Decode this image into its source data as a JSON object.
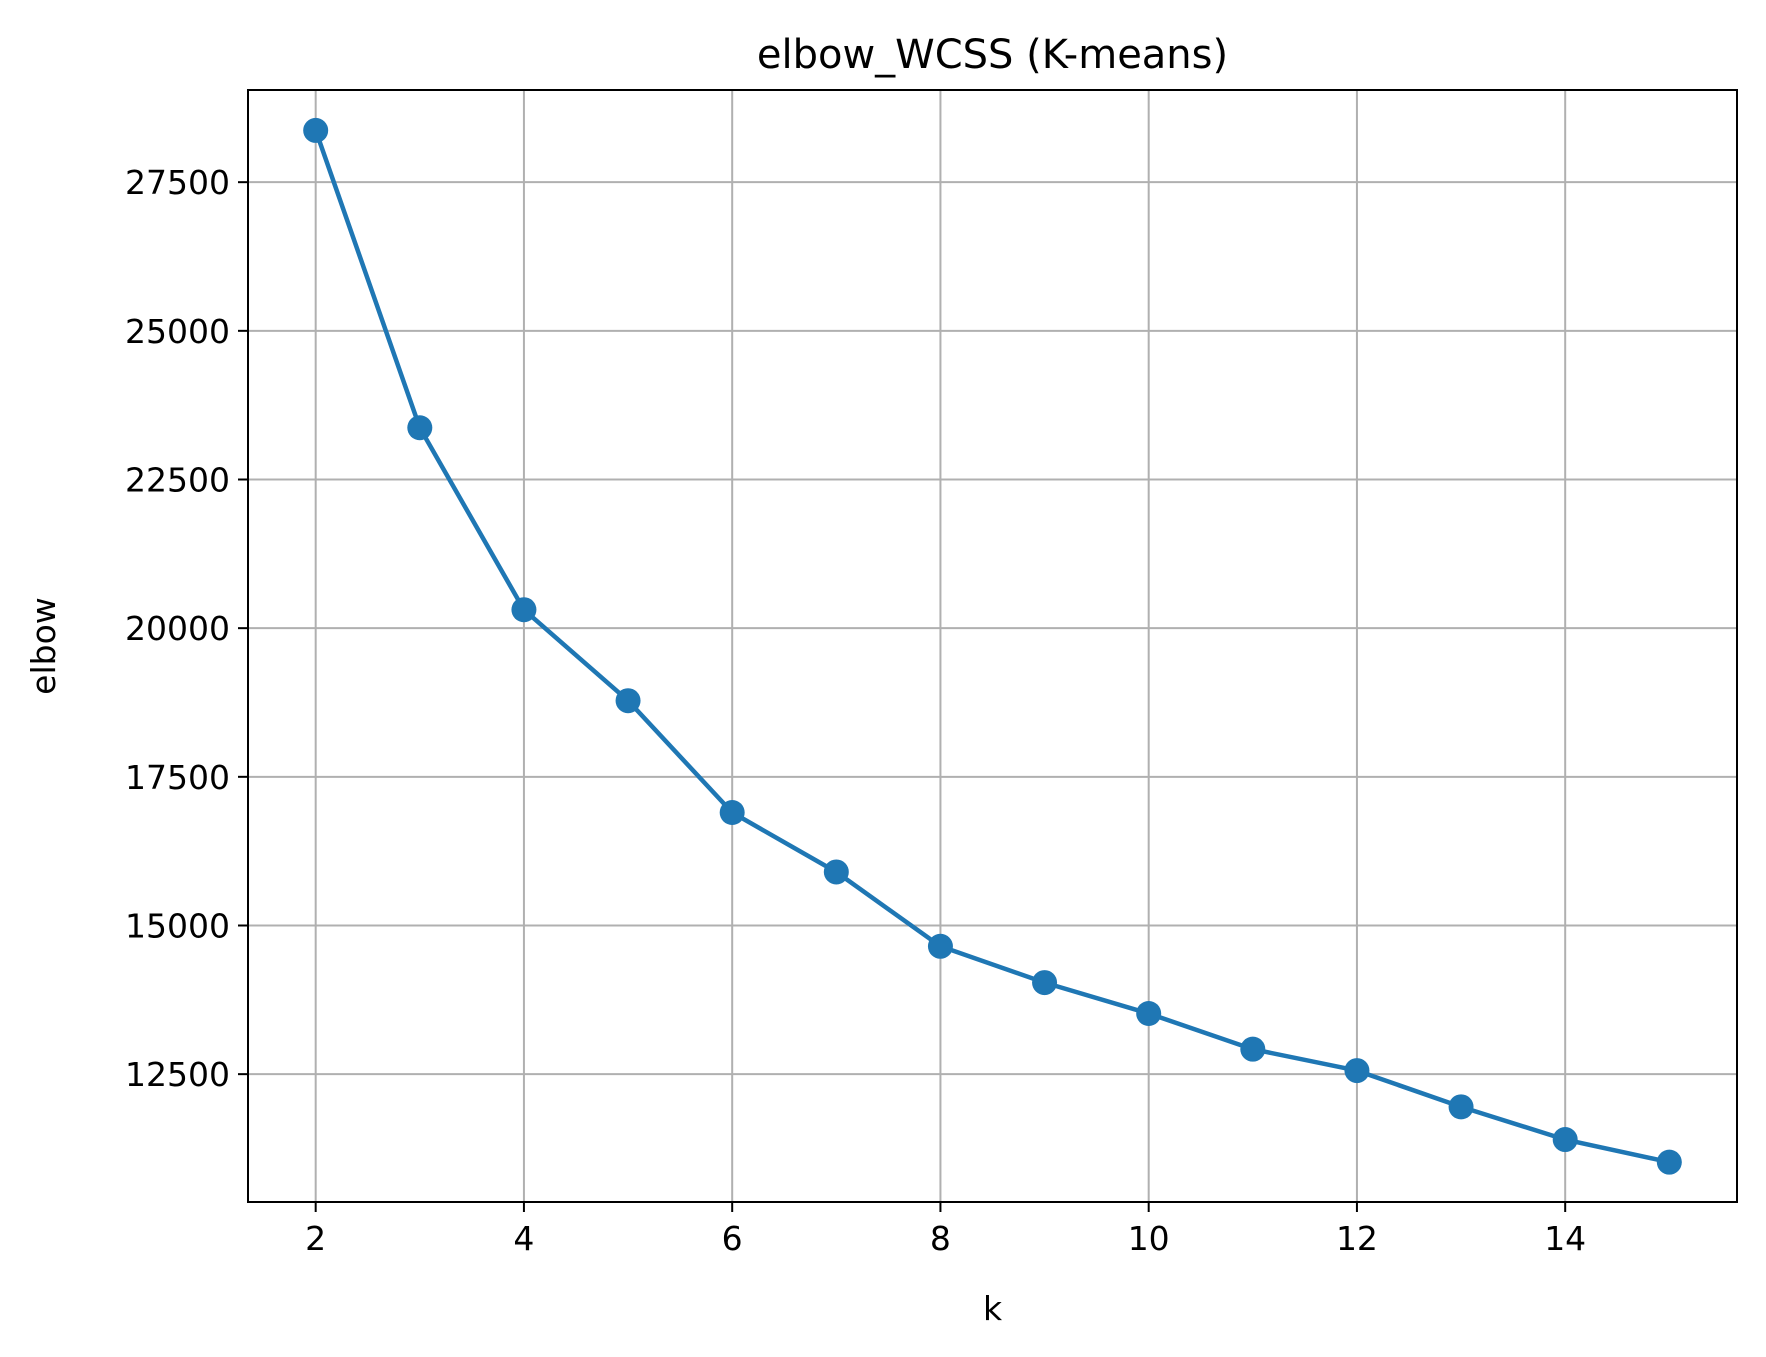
{
  "chart_data": {
    "type": "line",
    "title": "elbow_WCSS (K-means)",
    "xlabel": "k",
    "ylabel": "elbow",
    "x": [
      2,
      3,
      4,
      5,
      6,
      7,
      8,
      9,
      10,
      11,
      12,
      13,
      14,
      15
    ],
    "series": [
      {
        "values": [
          28370,
          23370,
          20310,
          18780,
          16900,
          15900,
          14650,
          14040,
          13520,
          12920,
          12560,
          11950,
          11400,
          11020
        ],
        "color": "#1f77b4",
        "marker": "circle"
      }
    ],
    "xticks": [
      2,
      4,
      6,
      8,
      10,
      12,
      14
    ],
    "yticks": [
      12500,
      15000,
      17500,
      20000,
      22500,
      25000,
      27500
    ],
    "xlim": [
      1.35,
      15.65
    ],
    "ylim": [
      10350,
      29050
    ],
    "grid": true,
    "colors": {
      "grid": "#b0b0b0",
      "axes": "#000000",
      "line": "#1f77b4"
    }
  }
}
